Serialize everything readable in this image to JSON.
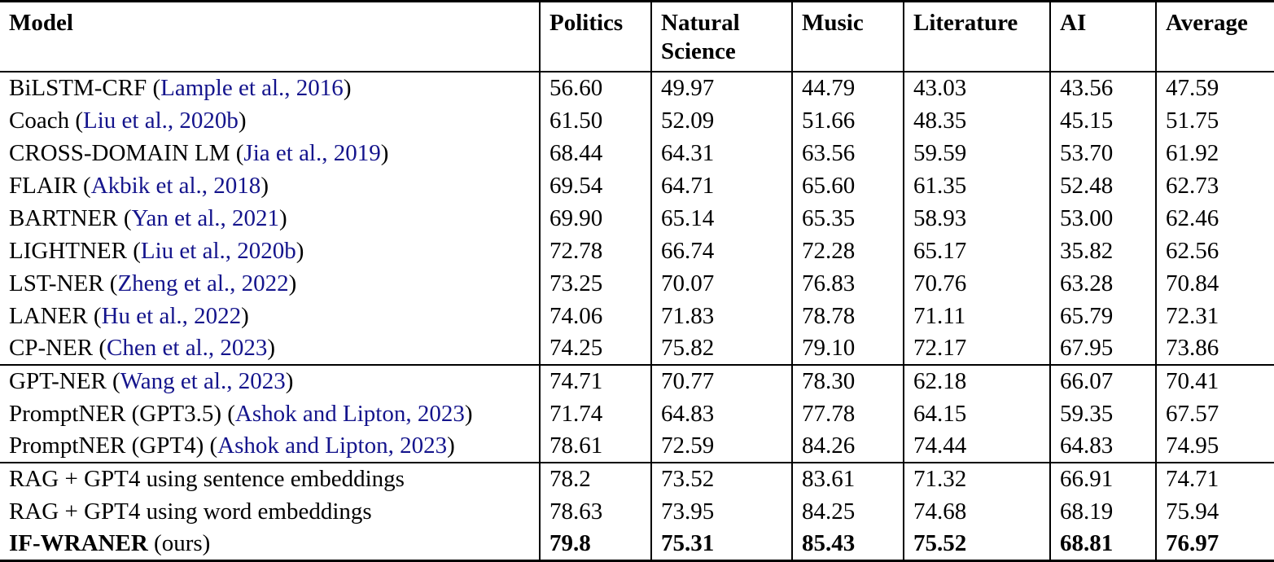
{
  "table": {
    "columns": [
      "Model",
      "Politics",
      "Natural Science",
      "Music",
      "Literature",
      "AI",
      "Average"
    ],
    "citation_color": "#14148c",
    "groups": [
      {
        "rows": [
          {
            "model": [
              {
                "text": "BiLSTM-CRF ("
              },
              {
                "text": "Lample et al., 2016",
                "cite": true
              },
              {
                "text": ")"
              }
            ],
            "values": [
              "56.60",
              "49.97",
              "44.79",
              "43.03",
              "43.56",
              "47.59"
            ],
            "bold_values": false
          },
          {
            "model": [
              {
                "text": "Coach ("
              },
              {
                "text": "Liu et al., 2020b",
                "cite": true
              },
              {
                "text": ")"
              }
            ],
            "values": [
              "61.50",
              "52.09",
              "51.66",
              "48.35",
              "45.15",
              "51.75"
            ],
            "bold_values": false
          },
          {
            "model": [
              {
                "text": "CROSS-DOMAIN LM ("
              },
              {
                "text": "Jia et al., 2019",
                "cite": true
              },
              {
                "text": ")"
              }
            ],
            "values": [
              "68.44",
              "64.31",
              "63.56",
              "59.59",
              "53.70",
              "61.92"
            ],
            "bold_values": false
          },
          {
            "model": [
              {
                "text": "FLAIR ("
              },
              {
                "text": "Akbik et al., 2018",
                "cite": true
              },
              {
                "text": ")"
              }
            ],
            "values": [
              "69.54",
              "64.71",
              "65.60",
              "61.35",
              "52.48",
              "62.73"
            ],
            "bold_values": false
          },
          {
            "model": [
              {
                "text": "BARTNER ("
              },
              {
                "text": "Yan et al., 2021",
                "cite": true
              },
              {
                "text": ")"
              }
            ],
            "values": [
              "69.90",
              "65.14",
              "65.35",
              "58.93",
              "53.00",
              "62.46"
            ],
            "bold_values": false
          },
          {
            "model": [
              {
                "text": "LIGHTNER ("
              },
              {
                "text": "Liu et al., 2020b",
                "cite": true
              },
              {
                "text": ")"
              }
            ],
            "values": [
              "72.78",
              "66.74",
              "72.28",
              "65.17",
              "35.82",
              "62.56"
            ],
            "bold_values": false
          },
          {
            "model": [
              {
                "text": "LST-NER ("
              },
              {
                "text": "Zheng et al., 2022",
                "cite": true
              },
              {
                "text": ")"
              }
            ],
            "values": [
              "73.25",
              "70.07",
              "76.83",
              "70.76",
              "63.28",
              "70.84"
            ],
            "bold_values": false
          },
          {
            "model": [
              {
                "text": "LANER ("
              },
              {
                "text": "Hu et al., 2022",
                "cite": true
              },
              {
                "text": ")"
              }
            ],
            "values": [
              "74.06",
              "71.83",
              "78.78",
              "71.11",
              "65.79",
              "72.31"
            ],
            "bold_values": false
          },
          {
            "model": [
              {
                "text": "CP-NER ("
              },
              {
                "text": "Chen et al., 2023",
                "cite": true
              },
              {
                "text": ")"
              }
            ],
            "values": [
              "74.25",
              "75.82",
              "79.10",
              "72.17",
              "67.95",
              "73.86"
            ],
            "bold_values": false
          }
        ]
      },
      {
        "rows": [
          {
            "model": [
              {
                "text": "GPT-NER ("
              },
              {
                "text": "Wang et al., 2023",
                "cite": true
              },
              {
                "text": ")"
              }
            ],
            "values": [
              "74.71",
              "70.77",
              "78.30",
              "62.18",
              "66.07",
              "70.41"
            ],
            "bold_values": false
          },
          {
            "model": [
              {
                "text": "PromptNER (GPT3.5) ("
              },
              {
                "text": "Ashok and Lipton, 2023",
                "cite": true
              },
              {
                "text": ")"
              }
            ],
            "values": [
              "71.74",
              "64.83",
              "77.78",
              "64.15",
              "59.35",
              "67.57"
            ],
            "bold_values": false
          },
          {
            "model": [
              {
                "text": "PromptNER (GPT4) ("
              },
              {
                "text": "Ashok and Lipton, 2023",
                "cite": true
              },
              {
                "text": ")"
              }
            ],
            "values": [
              "78.61",
              "72.59",
              "84.26",
              "74.44",
              "64.83",
              "74.95"
            ],
            "bold_values": false
          }
        ]
      },
      {
        "rows": [
          {
            "model": [
              {
                "text": "RAG + GPT4 using sentence embeddings"
              }
            ],
            "values": [
              "78.2",
              "73.52",
              "83.61",
              "71.32",
              "66.91",
              "74.71"
            ],
            "bold_values": false
          },
          {
            "model": [
              {
                "text": "RAG + GPT4 using word embeddings"
              }
            ],
            "values": [
              "78.63",
              "73.95",
              "84.25",
              "74.68",
              "68.19",
              "75.94"
            ],
            "bold_values": false
          },
          {
            "model": [
              {
                "text": "IF-WRANER",
                "bold": true
              },
              {
                "text": " (ours)"
              }
            ],
            "values": [
              "79.8",
              "75.31",
              "85.43",
              "75.52",
              "68.81",
              "76.97"
            ],
            "bold_values": true
          }
        ]
      }
    ]
  }
}
